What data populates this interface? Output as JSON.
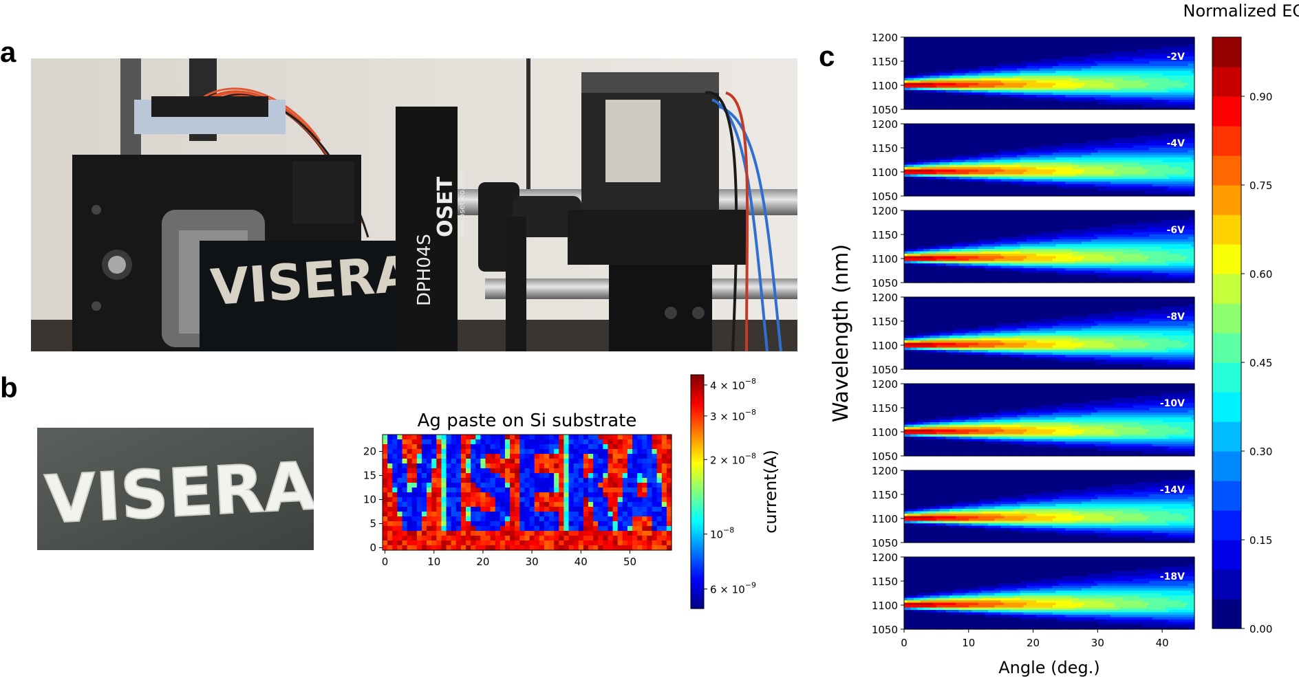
{
  "panels": {
    "a": {
      "letter": "a",
      "photo": "setup-photo",
      "visible_text": {
        "mask_text": "VISERA",
        "detector_model": "DPH04S",
        "brand": "OSET",
        "brand_url": "www.oset-eo.com"
      }
    },
    "b": {
      "letter": "b",
      "photo": "sample-photo",
      "sample_text": "VISERA"
    },
    "c": {
      "letter": "c"
    }
  },
  "chart_data": [
    {
      "type": "heatmap",
      "title": "Ag paste on Si substrate",
      "xlabel": "",
      "ylabel": "",
      "xlim": [
        0,
        59
      ],
      "ylim": [
        0,
        24
      ],
      "xticks": [
        "0",
        "10",
        "20",
        "30",
        "40",
        "50"
      ],
      "yticks": [
        "0",
        "5",
        "10",
        "15",
        "20"
      ],
      "image_text": "VISERA",
      "colorbar": {
        "label": "current(A)",
        "scale": "log",
        "range": [
          5e-09,
          4.4e-08
        ],
        "ticks": [
          {
            "value": 4e-08,
            "mant": "4",
            "exp": "−8"
          },
          {
            "value": 3e-08,
            "mant": "3",
            "exp": "−8"
          },
          {
            "value": 2e-08,
            "mant": "2",
            "exp": "−8"
          },
          {
            "value": 1e-08,
            "mant": "",
            "exp": "−8"
          },
          {
            "value": 6e-09,
            "mant": "6",
            "exp": "−9"
          }
        ],
        "times": "×",
        "base": "10"
      },
      "colormap": "jet",
      "background_value": 3.3e-08,
      "pattern_value": 6e-09
    },
    {
      "type": "heatmap",
      "subtype": "filled-contour",
      "xlabel": "Angle (deg.)",
      "ylabel": "Wavelength (nm)",
      "xlim": [
        0,
        45
      ],
      "ylim": [
        1050,
        1200
      ],
      "xticks": [
        "0",
        "10",
        "20",
        "30",
        "40"
      ],
      "yticks": [
        "1050",
        "1100",
        "1150",
        "1200"
      ],
      "peak_wavelength_nm": 1100,
      "series": [
        {
          "name": "-2V",
          "peak": 1.0
        },
        {
          "name": "-4V",
          "peak": 1.0
        },
        {
          "name": "-6V",
          "peak": 1.0
        },
        {
          "name": "-8V",
          "peak": 1.0
        },
        {
          "name": "-10V",
          "peak": 1.0
        },
        {
          "name": "-14V",
          "peak": 1.0
        },
        {
          "name": "-18V",
          "peak": 1.0
        }
      ],
      "colorbar": {
        "label": "Normalized EQE",
        "range": [
          0,
          1.0
        ],
        "levels": 20,
        "ticks": [
          "0.00",
          "0.15",
          "0.30",
          "0.45",
          "0.60",
          "0.75",
          "0.90"
        ]
      },
      "colormap": "jet"
    }
  ]
}
